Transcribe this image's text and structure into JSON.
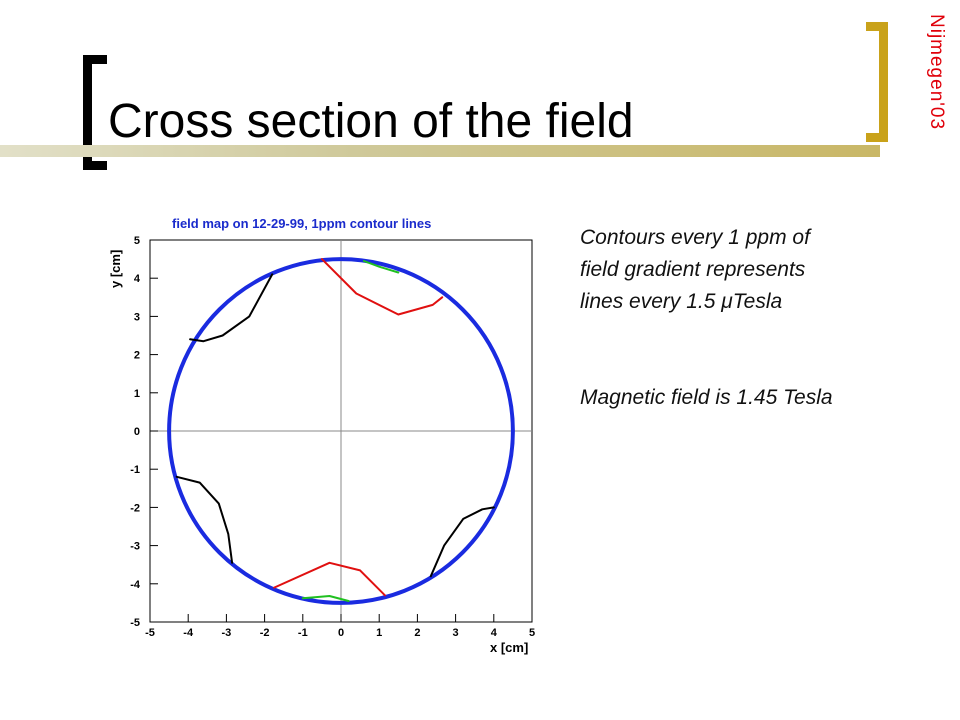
{
  "slide": {
    "title": "Cross section of the field",
    "side_label": "Nijmegen'03"
  },
  "notes": {
    "gradient": [
      "Contours every 1 ppm of",
      "field gradient represents",
      "lines every 1.5 μTesla"
    ],
    "field": "Magnetic field is 1.45 Tesla"
  },
  "colors": {
    "accent_gold": "#c9a21a",
    "side_label": "#e0000a"
  },
  "chart_data": {
    "type": "line",
    "title": "field map on 12-29-99, 1ppm contour lines",
    "xlabel": "x [cm]",
    "ylabel": "y [cm]",
    "xlim": [
      -5,
      5
    ],
    "ylim": [
      -5,
      5
    ],
    "xticks": [
      -5,
      -4,
      -3,
      -2,
      -1,
      0,
      1,
      2,
      3,
      4,
      5
    ],
    "yticks": [
      5,
      4,
      3,
      2,
      1,
      0,
      -1,
      -2,
      -3,
      -4,
      -5
    ],
    "grid": "axes through origin",
    "boundary_radius": 4.5,
    "series": [
      {
        "color": "#e01010",
        "points": [
          [
            -0.5,
            4.5
          ],
          [
            0.4,
            3.6
          ],
          [
            1.5,
            3.05
          ],
          [
            2.4,
            3.3
          ],
          [
            2.65,
            3.5
          ]
        ]
      },
      {
        "color": "#e01010",
        "points": [
          [
            -1.75,
            -4.1
          ],
          [
            -0.3,
            -3.45
          ],
          [
            0.5,
            -3.65
          ],
          [
            1.15,
            -4.3
          ]
        ]
      },
      {
        "color": "#20c020",
        "points": [
          [
            0.6,
            4.45
          ],
          [
            1.0,
            4.3
          ],
          [
            1.5,
            4.15
          ]
        ]
      },
      {
        "color": "#20c020",
        "points": [
          [
            -1.0,
            -4.38
          ],
          [
            -0.3,
            -4.32
          ],
          [
            0.2,
            -4.45
          ]
        ]
      },
      {
        "color": "#000000",
        "points": [
          [
            -1.8,
            4.1
          ],
          [
            -2.4,
            3.0
          ],
          [
            -3.1,
            2.5
          ],
          [
            -3.6,
            2.35
          ],
          [
            -3.95,
            2.4
          ]
        ]
      },
      {
        "color": "#000000",
        "points": [
          [
            -4.3,
            -1.2
          ],
          [
            -3.7,
            -1.35
          ],
          [
            -3.2,
            -1.9
          ],
          [
            -2.95,
            -2.7
          ],
          [
            -2.85,
            -3.45
          ]
        ]
      },
      {
        "color": "#000000",
        "points": [
          [
            2.35,
            -3.8
          ],
          [
            2.7,
            -3.0
          ],
          [
            3.2,
            -2.3
          ],
          [
            3.7,
            -2.05
          ],
          [
            4.0,
            -2.0
          ]
        ]
      }
    ]
  }
}
